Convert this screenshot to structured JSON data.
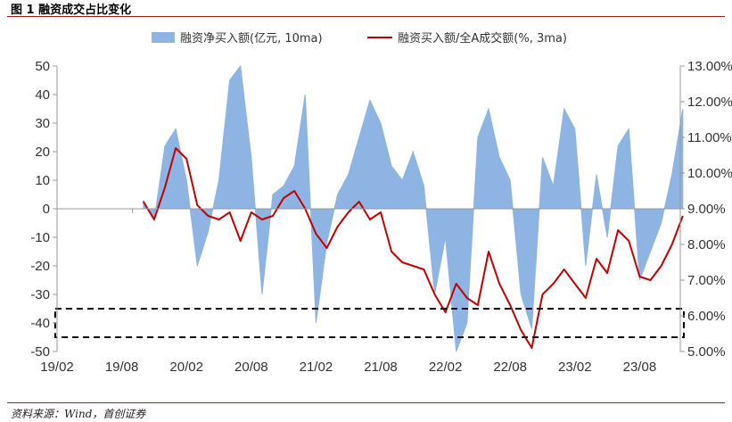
{
  "figure_title": "图 1 融资成交占比变化",
  "source_note": "资料来源：Wind，首创证券",
  "colors": {
    "bars": "#8db4e2",
    "line": "#c00000",
    "box": "#000000",
    "axis": "#999999"
  },
  "chart_data": {
    "type": "area",
    "title": "",
    "legend": {
      "placement": "top",
      "entries": [
        "融资净买入额(亿元, 10ma)",
        "融资买入额/全A成交额(%, 3ma)"
      ]
    },
    "x_ticks": [
      "19/02",
      "19/08",
      "20/02",
      "20/08",
      "21/02",
      "21/08",
      "22/02",
      "22/08",
      "23/02",
      "23/08"
    ],
    "y_left": {
      "ticks": [
        "50",
        "40",
        "30",
        "20",
        "10",
        "0",
        "-10",
        "-20",
        "-30",
        "-40",
        "-50"
      ],
      "ylim": [
        -50,
        50
      ]
    },
    "y_right": {
      "ticks": [
        "13.00%",
        "12.00%",
        "11.00%",
        "10.00%",
        "9.00%",
        "8.00%",
        "7.00%",
        "6.00%",
        "5.00%"
      ],
      "ylim": [
        5,
        13
      ]
    },
    "x_range": [
      "2019-02",
      "2024-01"
    ],
    "series": [
      {
        "name": "融资净买入额(亿元, 10ma)",
        "kind": "area",
        "axis": "left",
        "points": [
          [
            "2019-10",
            3
          ],
          [
            "2019-11",
            -4
          ],
          [
            "2019-12",
            22
          ],
          [
            "2020-01",
            28
          ],
          [
            "2020-02",
            10
          ],
          [
            "2020-03",
            -20
          ],
          [
            "2020-04",
            -8
          ],
          [
            "2020-05",
            10
          ],
          [
            "2020-06",
            45
          ],
          [
            "2020-07",
            50
          ],
          [
            "2020-08",
            18
          ],
          [
            "2020-09",
            -30
          ],
          [
            "2020-10",
            5
          ],
          [
            "2020-11",
            8
          ],
          [
            "2020-12",
            15
          ],
          [
            "2021-01",
            40
          ],
          [
            "2021-02",
            -40
          ],
          [
            "2021-03",
            -12
          ],
          [
            "2021-04",
            5
          ],
          [
            "2021-05",
            12
          ],
          [
            "2021-06",
            25
          ],
          [
            "2021-07",
            38
          ],
          [
            "2021-08",
            30
          ],
          [
            "2021-09",
            15
          ],
          [
            "2021-10",
            10
          ],
          [
            "2021-11",
            20
          ],
          [
            "2021-12",
            8
          ],
          [
            "2022-01",
            -30
          ],
          [
            "2022-02",
            -10
          ],
          [
            "2022-03",
            -50
          ],
          [
            "2022-04",
            -40
          ],
          [
            "2022-05",
            25
          ],
          [
            "2022-06",
            35
          ],
          [
            "2022-07",
            18
          ],
          [
            "2022-08",
            10
          ],
          [
            "2022-09",
            -30
          ],
          [
            "2022-10",
            -42
          ],
          [
            "2022-11",
            18
          ],
          [
            "2022-12",
            8
          ],
          [
            "2023-01",
            35
          ],
          [
            "2023-02",
            28
          ],
          [
            "2023-03",
            -20
          ],
          [
            "2023-04",
            12
          ],
          [
            "2023-05",
            -10
          ],
          [
            "2023-06",
            22
          ],
          [
            "2023-07",
            28
          ],
          [
            "2023-08",
            -25
          ],
          [
            "2023-09",
            -15
          ],
          [
            "2023-10",
            -5
          ],
          [
            "2023-11",
            12
          ],
          [
            "2023-12",
            35
          ]
        ]
      },
      {
        "name": "融资买入额/全A成交额(%, 3ma)",
        "kind": "line",
        "axis": "right",
        "points": [
          [
            "2019-10",
            9.2
          ],
          [
            "2019-11",
            8.7
          ],
          [
            "2019-12",
            9.6
          ],
          [
            "2020-01",
            10.7
          ],
          [
            "2020-02",
            10.4
          ],
          [
            "2020-03",
            9.1
          ],
          [
            "2020-04",
            8.8
          ],
          [
            "2020-05",
            8.7
          ],
          [
            "2020-06",
            8.9
          ],
          [
            "2020-07",
            8.1
          ],
          [
            "2020-08",
            8.9
          ],
          [
            "2020-09",
            8.7
          ],
          [
            "2020-10",
            8.8
          ],
          [
            "2020-11",
            9.3
          ],
          [
            "2020-12",
            9.5
          ],
          [
            "2021-01",
            9.0
          ],
          [
            "2021-02",
            8.3
          ],
          [
            "2021-03",
            7.9
          ],
          [
            "2021-04",
            8.5
          ],
          [
            "2021-05",
            8.9
          ],
          [
            "2021-06",
            9.2
          ],
          [
            "2021-07",
            8.7
          ],
          [
            "2021-08",
            8.9
          ],
          [
            "2021-09",
            7.8
          ],
          [
            "2021-10",
            7.5
          ],
          [
            "2021-11",
            7.4
          ],
          [
            "2021-12",
            7.3
          ],
          [
            "2022-01",
            6.6
          ],
          [
            "2022-02",
            6.1
          ],
          [
            "2022-03",
            6.9
          ],
          [
            "2022-04",
            6.5
          ],
          [
            "2022-05",
            6.3
          ],
          [
            "2022-06",
            7.8
          ],
          [
            "2022-07",
            6.9
          ],
          [
            "2022-08",
            6.3
          ],
          [
            "2022-09",
            5.6
          ],
          [
            "2022-10",
            5.1
          ],
          [
            "2022-11",
            6.6
          ],
          [
            "2022-12",
            6.9
          ],
          [
            "2023-01",
            7.3
          ],
          [
            "2023-02",
            6.9
          ],
          [
            "2023-03",
            6.5
          ],
          [
            "2023-04",
            7.6
          ],
          [
            "2023-05",
            7.2
          ],
          [
            "2023-06",
            8.4
          ],
          [
            "2023-07",
            8.1
          ],
          [
            "2023-08",
            7.1
          ],
          [
            "2023-09",
            7.0
          ],
          [
            "2023-10",
            7.4
          ],
          [
            "2023-11",
            8.0
          ],
          [
            "2023-12",
            8.8
          ]
        ]
      }
    ],
    "annotations": [
      {
        "type": "dashed-box",
        "y_left_range": [
          -45,
          -35
        ],
        "x_range": [
          "2019-01",
          "2024-01"
        ]
      }
    ],
    "grid": false
  }
}
